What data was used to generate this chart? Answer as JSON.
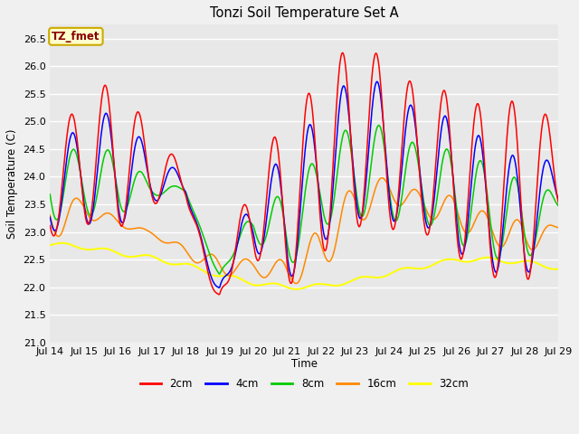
{
  "title": "Tonzi Soil Temperature Set A",
  "xlabel": "Time",
  "ylabel": "Soil Temperature (C)",
  "ylim": [
    21.0,
    26.75
  ],
  "yticks": [
    21.0,
    21.5,
    22.0,
    22.5,
    23.0,
    23.5,
    24.0,
    24.5,
    25.0,
    25.5,
    26.0,
    26.5
  ],
  "annotation_text": "TZ_fmet",
  "annotation_color": "#880000",
  "annotation_bg": "#ffffcc",
  "annotation_border": "#ccaa00",
  "fig_bg": "#f0f0f0",
  "plot_bg": "#e8e8e8",
  "line_colors": {
    "2cm": "#ff0000",
    "4cm": "#0000ff",
    "8cm": "#00cc00",
    "16cm": "#ff8800",
    "32cm": "#ffff00"
  },
  "x_start": 14,
  "x_end": 29,
  "xtick_positions": [
    14,
    15,
    16,
    17,
    18,
    19,
    20,
    21,
    22,
    23,
    24,
    25,
    26,
    27,
    28,
    29
  ],
  "xtick_labels": [
    "Jul 14",
    "Jul 15",
    "Jul 16",
    "Jul 17",
    "Jul 18",
    "Jul 19",
    "Jul 20",
    "Jul 21",
    "Jul 22",
    "Jul 23",
    "Jul 24",
    "Jul 25",
    "Jul 26",
    "Jul 27",
    "Jul 28",
    "Jul 29"
  ]
}
